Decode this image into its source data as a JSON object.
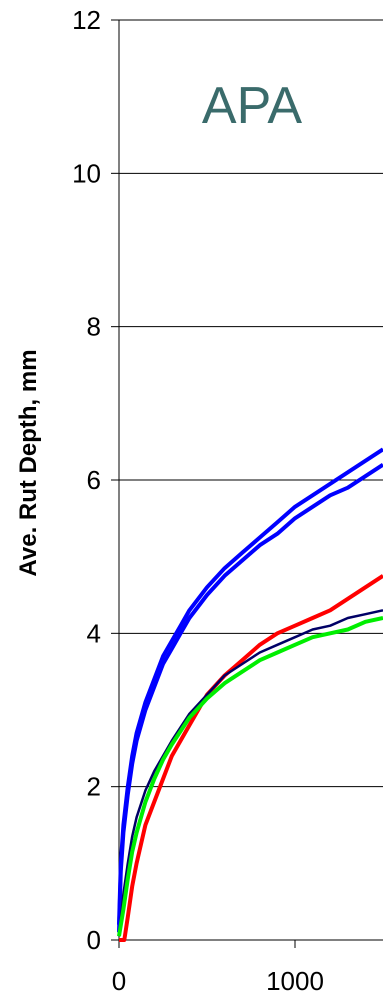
{
  "chart_data": {
    "type": "line",
    "title": "APA",
    "xlabel": "",
    "ylabel": "Ave. Rut Depth, mm",
    "xlim": [
      0,
      1500
    ],
    "ylim": [
      0,
      12
    ],
    "x_ticks": [
      "0",
      "1000"
    ],
    "y_ticks": [
      "0",
      "2",
      "4",
      "6",
      "8",
      "10",
      "12"
    ],
    "grid": "horizontal",
    "title_color": "#3a6b6b",
    "series": [
      {
        "color": "#0000ff",
        "x": [
          0,
          10,
          25,
          50,
          75,
          100,
          150,
          200,
          250,
          300,
          350,
          400,
          500,
          600,
          700,
          800,
          900,
          1000,
          1100,
          1200,
          1300,
          1400,
          1500
        ],
        "y": [
          0.2,
          1.0,
          1.5,
          2.0,
          2.4,
          2.7,
          3.1,
          3.4,
          3.7,
          3.9,
          4.1,
          4.3,
          4.6,
          4.85,
          5.05,
          5.25,
          5.45,
          5.65,
          5.8,
          5.95,
          6.1,
          6.25,
          6.4
        ]
      },
      {
        "color": "#0000ff",
        "x": [
          0,
          10,
          25,
          50,
          75,
          100,
          150,
          200,
          250,
          300,
          350,
          400,
          500,
          600,
          700,
          800,
          900,
          1000,
          1100,
          1200,
          1300,
          1400,
          1500
        ],
        "y": [
          0.1,
          0.9,
          1.4,
          1.9,
          2.3,
          2.6,
          3.0,
          3.3,
          3.6,
          3.8,
          4.0,
          4.2,
          4.5,
          4.75,
          4.95,
          5.15,
          5.3,
          5.5,
          5.65,
          5.8,
          5.9,
          6.05,
          6.2
        ]
      },
      {
        "color": "#ff0000",
        "x": [
          0,
          30,
          50,
          75,
          100,
          150,
          200,
          250,
          300,
          400,
          500,
          600,
          700,
          800,
          900,
          1000,
          1100,
          1200,
          1300,
          1400,
          1500
        ],
        "y": [
          0.0,
          0.0,
          0.3,
          0.7,
          1.0,
          1.5,
          1.8,
          2.1,
          2.4,
          2.8,
          3.2,
          3.45,
          3.65,
          3.85,
          4.0,
          4.1,
          4.2,
          4.3,
          4.45,
          4.6,
          4.75
        ]
      },
      {
        "color": "#000066",
        "x": [
          0,
          25,
          50,
          75,
          100,
          150,
          200,
          250,
          300,
          400,
          500,
          600,
          700,
          800,
          900,
          1000,
          1100,
          1200,
          1300,
          1400,
          1500
        ],
        "y": [
          0.05,
          0.6,
          1.0,
          1.35,
          1.6,
          1.95,
          2.2,
          2.4,
          2.6,
          2.95,
          3.2,
          3.45,
          3.6,
          3.75,
          3.85,
          3.95,
          4.05,
          4.1,
          4.2,
          4.25,
          4.3
        ]
      },
      {
        "color": "#00ee00",
        "x": [
          0,
          25,
          50,
          75,
          100,
          150,
          200,
          250,
          300,
          400,
          500,
          600,
          700,
          800,
          900,
          1000,
          1100,
          1200,
          1300,
          1400,
          1500
        ],
        "y": [
          0.05,
          0.4,
          0.8,
          1.15,
          1.4,
          1.8,
          2.1,
          2.35,
          2.55,
          2.9,
          3.15,
          3.35,
          3.5,
          3.65,
          3.75,
          3.85,
          3.95,
          4.0,
          4.05,
          4.15,
          4.2
        ]
      }
    ]
  }
}
